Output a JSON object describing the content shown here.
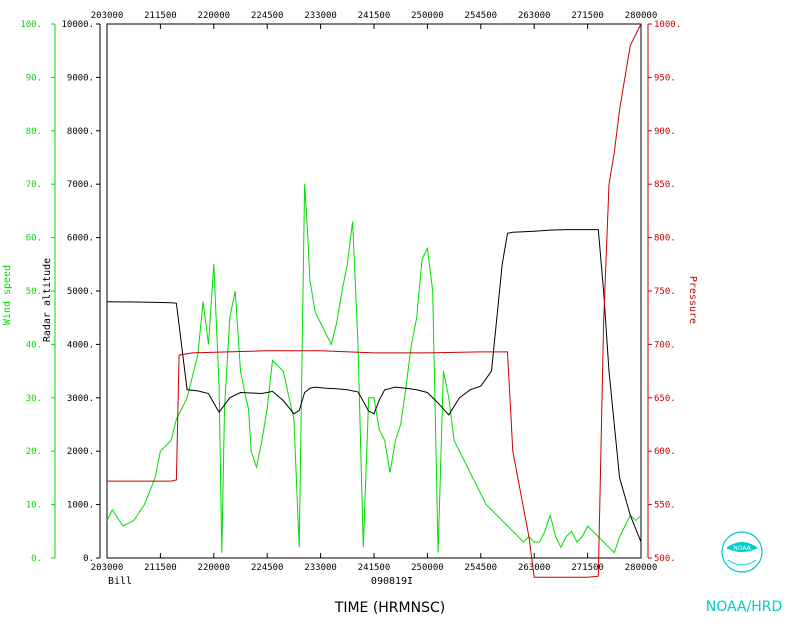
{
  "colors": {
    "wind": "#00dd00",
    "altitude": "#000000",
    "pressure": "#cc0000",
    "noaa": "#00cccc",
    "axis": "#000000"
  },
  "labels": {
    "storm": "Bill",
    "flight": "090819I",
    "xlabel": "TIME (HRMNSC)",
    "noaa": "NOAA/HRD",
    "noaa_badge": "NOAA"
  },
  "chart_data": {
    "type": "line",
    "x_ticks": [
      "203000",
      "211500",
      "220000",
      "224500",
      "233000",
      "241500",
      "250000",
      "254500",
      "263000",
      "271500",
      "280000"
    ],
    "x_range": [
      203000,
      280000
    ],
    "wind_axis": {
      "label": "Wind speed",
      "range": [
        0,
        100
      ],
      "ticks": [
        "0.",
        "10.",
        "20.",
        "30.",
        "40.",
        "50.",
        "60.",
        "70.",
        "80.",
        "90.",
        "100."
      ]
    },
    "altitude_axis": {
      "label": "Radar altitude",
      "range": [
        0,
        10000
      ],
      "ticks": [
        "0.",
        "1000.",
        "2000.",
        "3000.",
        "4000.",
        "5000.",
        "6000.",
        "7000.",
        "8000.",
        "9000.",
        "10000."
      ]
    },
    "pressure_axis": {
      "label": "Pressure",
      "range": [
        500,
        1000
      ],
      "ticks": [
        "500.",
        "550.",
        "600.",
        "650.",
        "700.",
        "750.",
        "800.",
        "850.",
        "900.",
        "950.",
        "1000."
      ]
    },
    "series": [
      {
        "name": "Wind speed",
        "axis": "wind",
        "x": [
          0,
          0.01,
          0.03,
          0.05,
          0.07,
          0.09,
          0.1,
          0.12,
          0.13,
          0.15,
          0.16,
          0.17,
          0.18,
          0.19,
          0.2,
          0.21,
          0.215,
          0.22,
          0.23,
          0.24,
          0.25,
          0.26,
          0.265,
          0.27,
          0.28,
          0.29,
          0.3,
          0.31,
          0.33,
          0.35,
          0.36,
          0.37,
          0.375,
          0.38,
          0.39,
          0.4,
          0.41,
          0.42,
          0.43,
          0.44,
          0.45,
          0.46,
          0.47,
          0.48,
          0.49,
          0.5,
          0.51,
          0.52,
          0.53,
          0.54,
          0.55,
          0.56,
          0.57,
          0.58,
          0.59,
          0.6,
          0.61,
          0.62,
          0.63,
          0.64,
          0.65,
          0.66,
          0.67,
          0.68,
          0.69,
          0.7,
          0.71,
          0.72,
          0.73,
          0.74,
          0.75,
          0.76,
          0.77,
          0.78,
          0.79,
          0.8,
          0.81,
          0.82,
          0.83,
          0.84,
          0.85,
          0.86,
          0.87,
          0.88,
          0.89,
          0.9,
          0.91,
          0.92,
          0.93,
          0.94,
          0.95,
          0.96,
          0.97,
          0.98,
          0.99,
          1.0
        ],
        "values": [
          7,
          9,
          6,
          7,
          10,
          15,
          20,
          22,
          26,
          30,
          34,
          38,
          48,
          40,
          55,
          32,
          1,
          28,
          45,
          50,
          35,
          30,
          28,
          20,
          17,
          22,
          28,
          37,
          35,
          26,
          2,
          70,
          62,
          52,
          46,
          44,
          42,
          40,
          44,
          50,
          55,
          63,
          40,
          2,
          30,
          30,
          24,
          22,
          16,
          22,
          25,
          32,
          40,
          45,
          56,
          58,
          50,
          1,
          35,
          30,
          22,
          20,
          18,
          16,
          14,
          12,
          10,
          9,
          8,
          7,
          6,
          5,
          4,
          3,
          4,
          3,
          3,
          5,
          8,
          4,
          2,
          4,
          5,
          3,
          4,
          6,
          5,
          4,
          3,
          2,
          1,
          4,
          6,
          8,
          7,
          8
        ]
      },
      {
        "name": "Radar altitude",
        "axis": "altitude",
        "x": [
          0,
          0.08,
          0.12,
          0.13,
          0.15,
          0.17,
          0.19,
          0.2,
          0.21,
          0.23,
          0.25,
          0.27,
          0.29,
          0.31,
          0.33,
          0.35,
          0.36,
          0.37,
          0.38,
          0.39,
          0.41,
          0.43,
          0.45,
          0.47,
          0.49,
          0.5,
          0.51,
          0.52,
          0.54,
          0.56,
          0.58,
          0.6,
          0.62,
          0.64,
          0.66,
          0.68,
          0.7,
          0.72,
          0.74,
          0.75,
          0.76,
          0.78,
          0.8,
          0.83,
          0.86,
          0.89,
          0.92,
          0.93,
          0.94,
          0.96,
          0.98,
          1.0
        ],
        "values": [
          4800,
          4790,
          4780,
          4770,
          3150,
          3130,
          3080,
          2900,
          2730,
          3000,
          3100,
          3090,
          3080,
          3120,
          2950,
          2700,
          2760,
          3100,
          3180,
          3200,
          3180,
          3170,
          3150,
          3110,
          2750,
          2700,
          2960,
          3150,
          3200,
          3180,
          3150,
          3100,
          2900,
          2680,
          3000,
          3150,
          3220,
          3500,
          5500,
          6080,
          6100,
          6110,
          6120,
          6140,
          6150,
          6150,
          6150,
          5000,
          3500,
          1500,
          800,
          300
        ]
      },
      {
        "name": "Pressure",
        "axis": "pressure",
        "x": [
          0,
          0.12,
          0.13,
          0.135,
          0.16,
          0.3,
          0.4,
          0.5,
          0.6,
          0.7,
          0.75,
          0.76,
          0.79,
          0.8,
          0.85,
          0.9,
          0.92,
          0.93,
          0.94,
          0.95,
          0.96,
          0.98,
          1.0
        ],
        "values": [
          572,
          572,
          573,
          690,
          692,
          694,
          694,
          692,
          692,
          693,
          693,
          600,
          520,
          482,
          482,
          482,
          483,
          720,
          850,
          880,
          920,
          980,
          1000
        ]
      }
    ]
  }
}
